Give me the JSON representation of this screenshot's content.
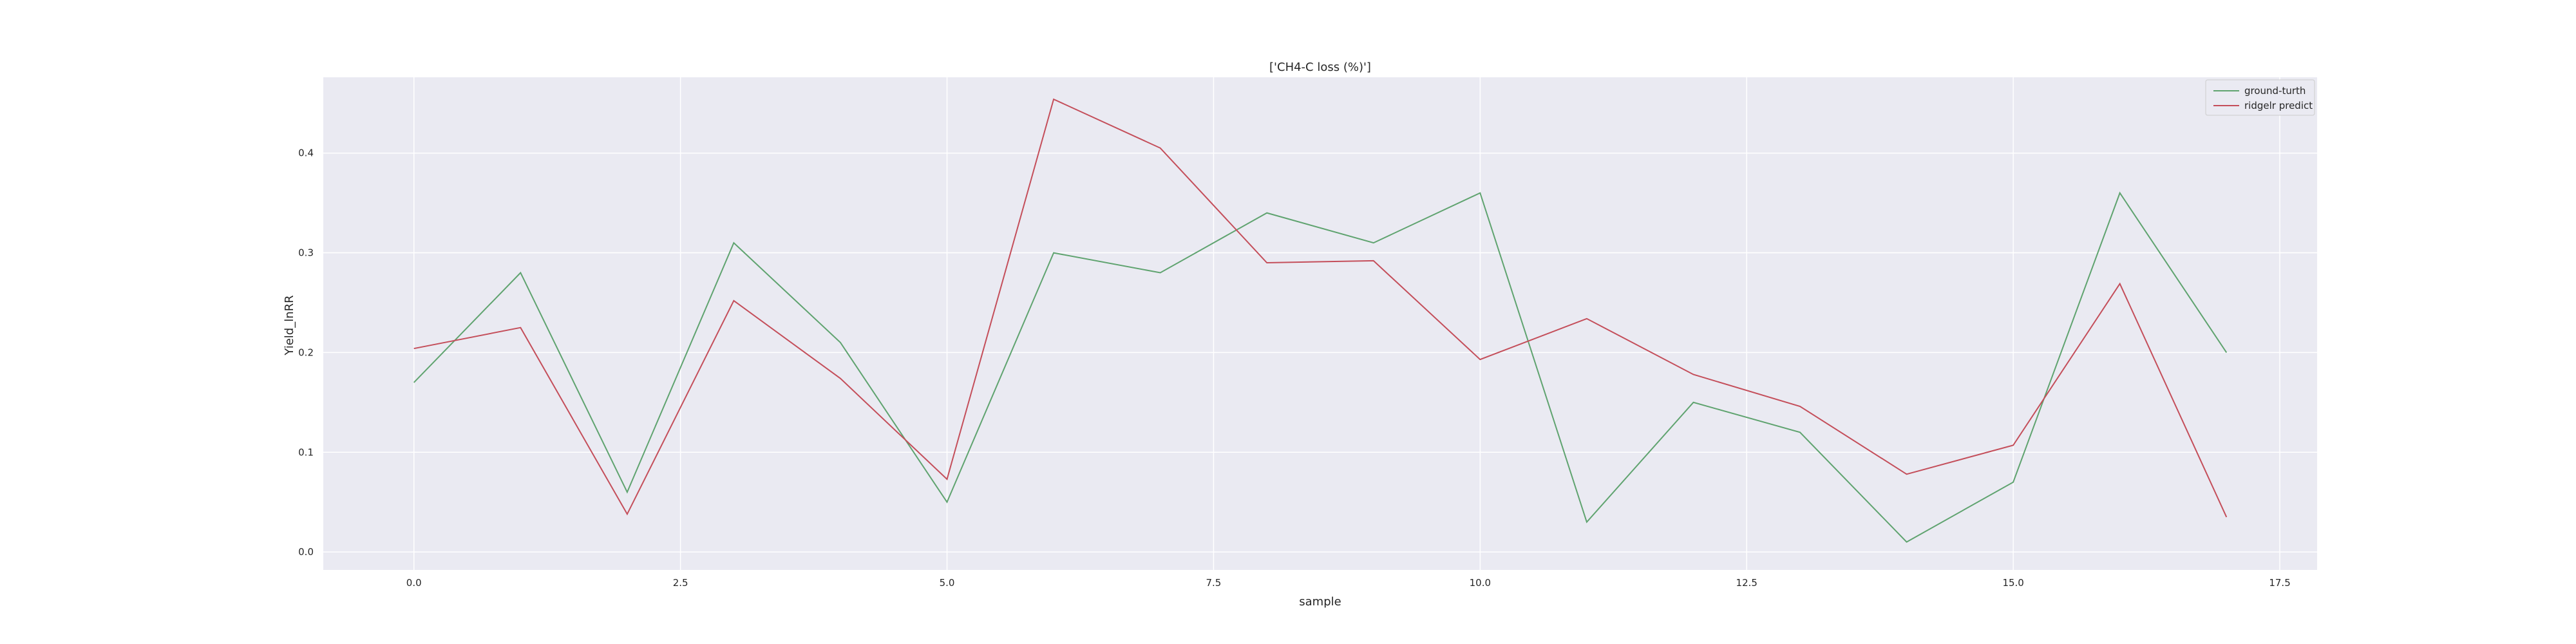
{
  "chart_data": {
    "type": "line",
    "title": "['CH4-C loss (%)']",
    "xlabel": "sample",
    "ylabel": "Yield_lnRR",
    "xlim": [
      -0.85,
      17.85
    ],
    "ylim": [
      -0.018,
      0.476
    ],
    "x_ticks": [
      "0.0",
      "2.5",
      "5.0",
      "7.5",
      "10.0",
      "12.5",
      "15.0",
      "17.5"
    ],
    "y_ticks": [
      "0.0",
      "0.1",
      "0.2",
      "0.3",
      "0.4"
    ],
    "grid": true,
    "legend_position": "top-right",
    "x": [
      0,
      1,
      2,
      3,
      4,
      5,
      6,
      7,
      8,
      9,
      10,
      11,
      12,
      13,
      14,
      15,
      16,
      17
    ],
    "series": [
      {
        "name": "ground-turth",
        "color": "#5fa36f",
        "values": [
          0.17,
          0.28,
          0.06,
          0.31,
          0.21,
          0.05,
          0.3,
          0.28,
          0.34,
          0.31,
          0.36,
          0.03,
          0.15,
          0.12,
          0.01,
          0.07,
          0.36,
          0.2
        ]
      },
      {
        "name": "ridgelr predict",
        "color": "#c44e5a",
        "values": [
          0.204,
          0.225,
          0.038,
          0.252,
          0.174,
          0.073,
          0.454,
          0.405,
          0.29,
          0.292,
          0.193,
          0.234,
          0.178,
          0.146,
          0.078,
          0.107,
          0.269,
          0.035
        ]
      }
    ]
  }
}
